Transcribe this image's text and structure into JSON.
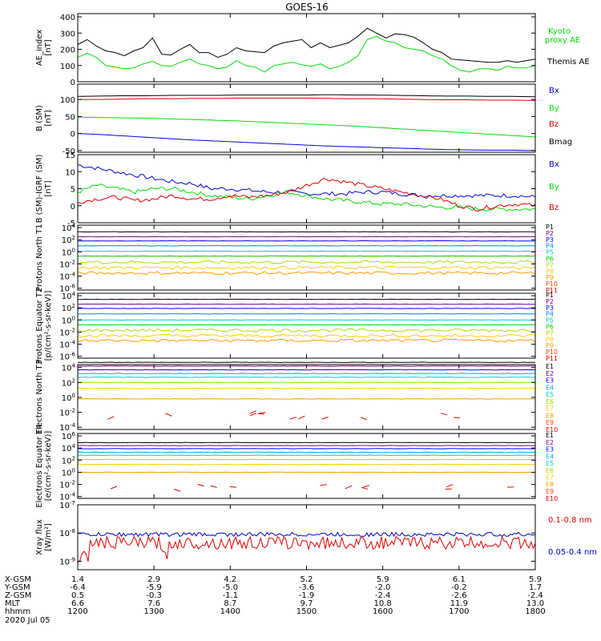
{
  "chart_data": [
    {
      "type": "line",
      "title": "GOES-16",
      "ylabel": "AE_index [nT]",
      "ylim": [
        0,
        420
      ],
      "y_ticks": [
        "0",
        "100",
        "200",
        "300",
        "400"
      ],
      "grid": false,
      "legend_placement": "right",
      "series": [
        {
          "name": "Kyoto proxy AE",
          "color": "#00dd00",
          "values": [
            150,
            175,
            150,
            100,
            90,
            80,
            85,
            110,
            125,
            100,
            95,
            120,
            140,
            110,
            100,
            80,
            90,
            130,
            100,
            90,
            60,
            100,
            110,
            120,
            105,
            95,
            110,
            80,
            95,
            120,
            160,
            260,
            280,
            250,
            240,
            210,
            200,
            190,
            160,
            140,
            100,
            70,
            60,
            80,
            80,
            70,
            95,
            85,
            85,
            100
          ]
        },
        {
          "name": "Themis AE",
          "color": "#000000",
          "values": [
            230,
            260,
            220,
            190,
            180,
            160,
            190,
            210,
            270,
            170,
            165,
            200,
            230,
            180,
            180,
            150,
            170,
            210,
            190,
            185,
            180,
            220,
            240,
            250,
            260,
            210,
            240,
            210,
            225,
            240,
            280,
            330,
            300,
            270,
            295,
            290,
            275,
            240,
            200,
            180,
            140,
            135,
            130,
            125,
            120,
            120,
            130,
            120,
            130,
            140
          ]
        }
      ]
    },
    {
      "type": "line",
      "ylabel": "B (SM) [nT]",
      "ylim": [
        -55,
        145
      ],
      "y_ticks": [
        "-50",
        "0",
        "50",
        "100"
      ],
      "series": [
        {
          "name": "Bx",
          "color": "#0000dd",
          "values": [
            0,
            -3,
            -7,
            -11,
            -15,
            -19,
            -22,
            -25,
            -28,
            -31,
            -34,
            -37,
            -39,
            -41,
            -43,
            -45,
            -47,
            -48,
            -49,
            -49,
            -50
          ]
        },
        {
          "name": "By",
          "color": "#00dd00",
          "values": [
            48,
            47,
            46,
            45,
            43,
            41,
            39,
            37,
            34,
            31,
            28,
            25,
            22,
            18,
            14,
            10,
            6,
            2,
            -2,
            -6,
            -10
          ]
        },
        {
          "name": "Bz",
          "color": "#dd0000",
          "values": [
            100,
            100,
            101,
            102,
            102,
            103,
            103,
            104,
            104,
            104,
            104,
            103,
            102,
            102,
            101,
            100,
            99,
            99,
            98,
            98,
            97
          ]
        },
        {
          "name": "Bmag",
          "color": "#000000",
          "values": [
            109,
            110,
            111,
            111,
            112,
            112,
            112,
            113,
            113,
            113,
            113,
            114,
            113,
            113,
            112,
            111,
            110,
            110,
            109,
            109,
            108
          ]
        }
      ]
    },
    {
      "type": "line",
      "ylabel": "B (SM)-IGRF (SM) [nT]",
      "ylim": [
        -5,
        15
      ],
      "y_ticks": [
        "-5",
        "0",
        "5",
        "10",
        "15"
      ],
      "series": [
        {
          "name": "Bx",
          "color": "#0000dd",
          "values": [
            12,
            11,
            10,
            9,
            8,
            7,
            6.5,
            5,
            5,
            4.5,
            4,
            4,
            3.5,
            3.5,
            3.5,
            4,
            4,
            3.5,
            3,
            3,
            3,
            3,
            3,
            3,
            2.5
          ]
        },
        {
          "name": "By",
          "color": "#00dd00",
          "values": [
            4,
            6,
            5,
            4,
            5,
            5,
            4,
            3,
            2.5,
            2,
            3,
            4,
            3,
            2,
            1.5,
            1,
            0.5,
            0.5,
            0,
            -0.5,
            -0.5,
            -1,
            -1,
            -1,
            -1
          ]
        },
        {
          "name": "Bz",
          "color": "#dd0000",
          "values": [
            1,
            2,
            2.5,
            1.5,
            2,
            3,
            2,
            2,
            3,
            2.5,
            3,
            4,
            6,
            8,
            7,
            6,
            5,
            4,
            3,
            2,
            0,
            -1,
            0,
            0.5,
            0
          ]
        }
      ]
    },
    {
      "type": "line",
      "ylabel": "Protons North T1",
      "log": true,
      "y_ticks": [
        "10^4",
        "10^2",
        "10^0",
        "10^-2",
        "10^-4",
        "10^-6"
      ],
      "series": [
        {
          "name": "P1",
          "color": "#000000",
          "log10": 3.3
        },
        {
          "name": "P2",
          "color": "#7a0080",
          "log10": 2.5
        },
        {
          "name": "P3",
          "color": "#0000ff",
          "log10": 1.8
        },
        {
          "name": "P4",
          "color": "#0088ff",
          "log10": 1.0
        },
        {
          "name": "P5",
          "color": "#00cccc",
          "log10": 0.1
        },
        {
          "name": "P6",
          "color": "#00cc00",
          "log10": -0.7
        },
        {
          "name": "P7",
          "color": "#aadd00",
          "log10": -1.7
        },
        {
          "name": "P8",
          "color": "#ffcc00",
          "log10": -2.6
        },
        {
          "name": "P9",
          "color": "#ff9900",
          "log10": -3.5
        },
        {
          "name": "P10",
          "color": "#ff4400",
          "log10": null
        },
        {
          "name": "P11",
          "color": "#dd0000",
          "log10": null
        }
      ]
    },
    {
      "type": "line",
      "ylabel": "Protons Equator T2 [p/(cm²-s-sr-keV)]",
      "log": true,
      "y_ticks": [
        "10^4",
        "10^2",
        "10^0",
        "10^-2",
        "10^-4",
        "10^-6"
      ],
      "series": [
        {
          "name": "P1",
          "color": "#000000",
          "log10": 3.4
        },
        {
          "name": "P2",
          "color": "#7a0080",
          "log10": 2.6
        },
        {
          "name": "P3",
          "color": "#0000ff",
          "log10": 1.9
        },
        {
          "name": "P4",
          "color": "#0088ff",
          "log10": 1.0
        },
        {
          "name": "P5",
          "color": "#00cccc",
          "log10": 0.0
        },
        {
          "name": "P6",
          "color": "#00cc00",
          "log10": -0.8
        },
        {
          "name": "P7",
          "color": "#aadd00",
          "log10": -1.7
        },
        {
          "name": "P8",
          "color": "#ffcc00",
          "log10": -2.6
        },
        {
          "name": "P9",
          "color": "#ff9900",
          "log10": -3.4
        },
        {
          "name": "P10",
          "color": "#ff4400",
          "log10": null
        },
        {
          "name": "P11",
          "color": "#dd0000",
          "log10": null
        }
      ]
    },
    {
      "type": "line",
      "ylabel": "Electrons North T3",
      "log": true,
      "y_ticks": [
        "10^4",
        "10^2",
        "10^0",
        "10^-2",
        "10^-4"
      ],
      "series": [
        {
          "name": "E1",
          "color": "#000000",
          "log10": 4.7
        },
        {
          "name": "E2",
          "color": "#7a0080",
          "log10": 4.2
        },
        {
          "name": "E3",
          "color": "#0000ff",
          "log10": 3.7
        },
        {
          "name": "E4",
          "color": "#00aaff",
          "log10": 3.2
        },
        {
          "name": "E5",
          "color": "#00cccc",
          "log10": 2.7
        },
        {
          "name": "E6",
          "color": "#aadd00",
          "log10": 2.0
        },
        {
          "name": "E7",
          "color": "#ffcc00",
          "log10": 1.2
        },
        {
          "name": "E8",
          "color": "#ff9900",
          "log10": -0.2
        },
        {
          "name": "E9",
          "color": "#ff4400",
          "log10": null
        },
        {
          "name": "E10",
          "color": "#dd0000",
          "log10": -2.5
        }
      ]
    },
    {
      "type": "line",
      "ylabel": "Electrons Equator T4 [e/(cm²-s-sr-keV)]",
      "log": true,
      "y_ticks": [
        "10^6",
        "10^4",
        "10^2",
        "10^0",
        "10^-2",
        "10^-4"
      ],
      "series": [
        {
          "name": "E1",
          "color": "#000000",
          "log10": 4.9
        },
        {
          "name": "E2",
          "color": "#7a0080",
          "log10": 4.4
        },
        {
          "name": "E3",
          "color": "#0000ff",
          "log10": 3.9
        },
        {
          "name": "E4",
          "color": "#00aaff",
          "log10": 3.3
        },
        {
          "name": "E5",
          "color": "#00cccc",
          "log10": 2.8
        },
        {
          "name": "E6",
          "color": "#aadd00",
          "log10": 2.1
        },
        {
          "name": "E7",
          "color": "#ffcc00",
          "log10": 1.3
        },
        {
          "name": "E8",
          "color": "#ff9900",
          "log10": 0.0
        },
        {
          "name": "E9",
          "color": "#ff4400",
          "log10": null
        },
        {
          "name": "E10",
          "color": "#dd0000",
          "log10": -2.3
        }
      ]
    },
    {
      "type": "line",
      "ylabel": "Xray flux [W/m²]",
      "log": true,
      "y_ticks": [
        "10^-7",
        "10^-8",
        "10^-9"
      ],
      "series": [
        {
          "name": "0.1-0.8 nm",
          "color": "#dd0000",
          "log10_level": -8.35
        },
        {
          "name": "0.05-0.4 nm",
          "color": "#0000cc",
          "log10_level": -8.05
        }
      ]
    }
  ],
  "x_axis": {
    "labels": [
      "X-GSM",
      "Y-GSM",
      "Z-GSM",
      "MLT",
      "hhmm"
    ],
    "date": "2020 Jul 05",
    "ticks": [
      {
        "X-GSM": "1.4",
        "Y-GSM": "-6.4",
        "Z-GSM": "0.5",
        "MLT": "6.6",
        "hhmm": "1200"
      },
      {
        "X-GSM": "2.9",
        "Y-GSM": "-5.9",
        "Z-GSM": "-0.3",
        "MLT": "7.6",
        "hhmm": "1300"
      },
      {
        "X-GSM": "4.2",
        "Y-GSM": "-5.0",
        "Z-GSM": "-1.1",
        "MLT": "8.7",
        "hhmm": "1400"
      },
      {
        "X-GSM": "5.2",
        "Y-GSM": "-3.6",
        "Z-GSM": "-1.9",
        "MLT": "9.7",
        "hhmm": "1500"
      },
      {
        "X-GSM": "5.9",
        "Y-GSM": "-2.0",
        "Z-GSM": "-2.4",
        "MLT": "10.8",
        "hhmm": "1600"
      },
      {
        "X-GSM": "6.1",
        "Y-GSM": "-0.2",
        "Z-GSM": "-2.6",
        "MLT": "11.9",
        "hhmm": "1700"
      },
      {
        "X-GSM": "5.9",
        "Y-GSM": "1.7",
        "Z-GSM": "-2.4",
        "MLT": "13.0",
        "hhmm": "1800"
      }
    ]
  }
}
